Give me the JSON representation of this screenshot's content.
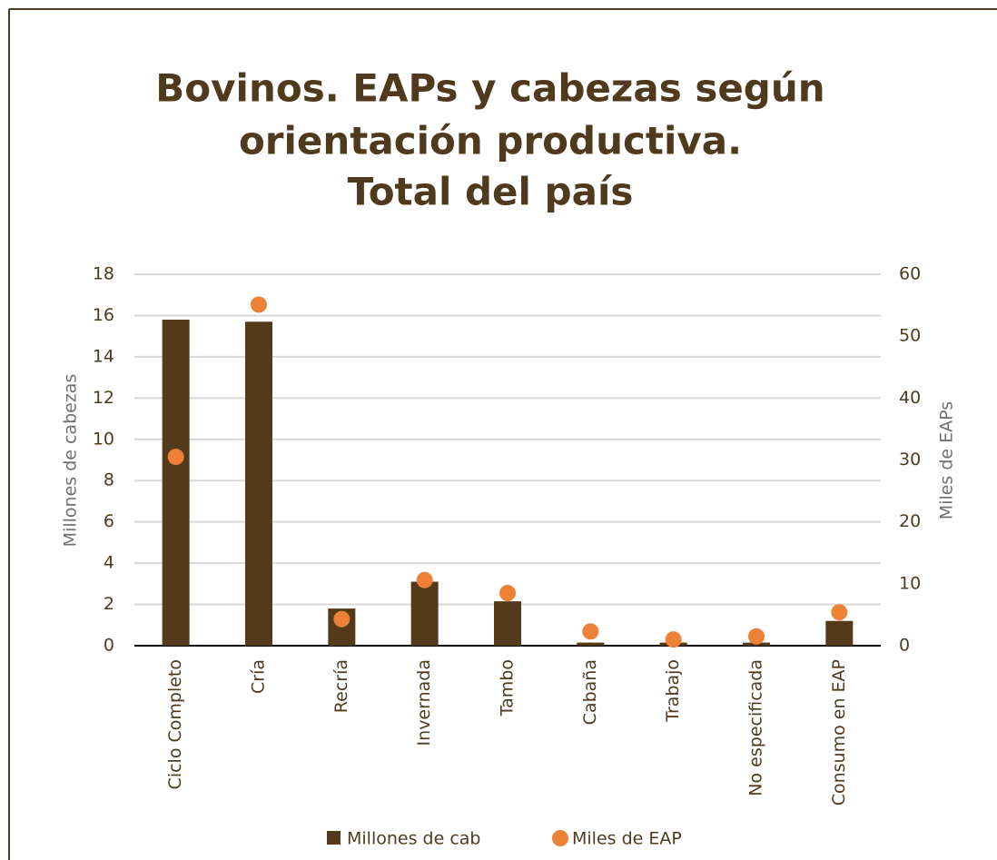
{
  "chart_data": {
    "type": "bar",
    "title": [
      "Bovinos. EAPs y cabezas según",
      "orientación productiva.",
      "Total del país"
    ],
    "y_label": "Millones de cabezas",
    "y2_label": "Miles de EAPs",
    "categories": [
      "Ciclo Completo",
      "Cría",
      "Recría",
      "Invernada",
      "Tambo",
      "Cabaña",
      "Trabajo",
      "No especificada",
      "Consumo en EAP"
    ],
    "series": [
      {
        "name": "Millones de cab",
        "color": "#533a1a",
        "type": "bar",
        "values": [
          15.8,
          15.7,
          1.8,
          3.1,
          2.15,
          0.15,
          0.15,
          0.15,
          1.2
        ]
      },
      {
        "name": "Miles de EAP",
        "color": "#ed8236",
        "type": "scatter",
        "axis": "y2",
        "values": [
          30.5,
          55.1,
          4.3,
          10.6,
          8.5,
          2.3,
          1.0,
          1.5,
          5.4
        ]
      }
    ],
    "ylim": [
      0,
      18
    ],
    "yticks": [
      0,
      2,
      4,
      6,
      8,
      10,
      12,
      14,
      16,
      18
    ],
    "y2lim": [
      0,
      60
    ],
    "y2ticks": [
      0,
      10,
      20,
      30,
      40,
      50,
      60
    ],
    "grid": true
  }
}
